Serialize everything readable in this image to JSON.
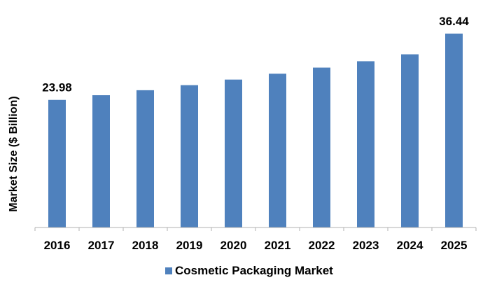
{
  "chart_data": {
    "type": "bar",
    "categories": [
      "2016",
      "2017",
      "2018",
      "2019",
      "2020",
      "2021",
      "2022",
      "2023",
      "2024",
      "2025"
    ],
    "series": [
      {
        "name": "Cosmetic Packaging Market",
        "values": [
          23.98,
          24.86,
          25.8,
          26.75,
          27.8,
          28.9,
          30.05,
          31.25,
          32.55,
          36.44
        ],
        "color": "#4f81bd"
      }
    ],
    "data_labels": [
      {
        "category": "2016",
        "text": "23.98"
      },
      {
        "category": "2025",
        "text": "36.44"
      }
    ],
    "title": "",
    "xlabel": "",
    "ylabel": "Market Size ($ Billion)",
    "ylim": [
      0,
      36.44
    ],
    "grid": false,
    "legend_position": "bottom"
  }
}
